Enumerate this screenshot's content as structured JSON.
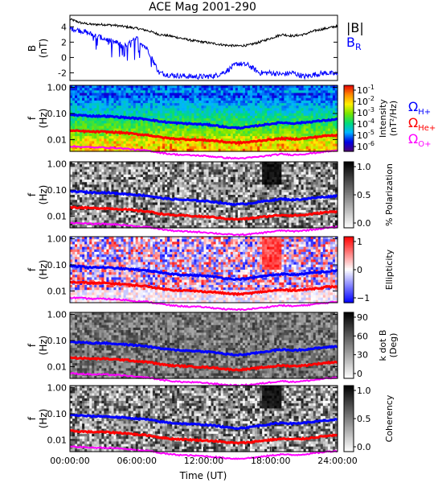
{
  "title": "ACE Mag 2001-290",
  "xaxis": {
    "label": "Time (UT)",
    "ticks": [
      "00:00:00",
      "06:00:00",
      "12:00:00",
      "18:00:00",
      "24:00:00"
    ],
    "range_hours": [
      0,
      24
    ]
  },
  "colors": {
    "B": "#000000",
    "BR": "#0000ff",
    "H": "#0000ff",
    "He": "#ff0000",
    "O": "#ff00ff"
  },
  "legend_top": {
    "B": "|B|",
    "BR_main": "B",
    "BR_sub": "R"
  },
  "gyro_legend": [
    {
      "sym": "Ω",
      "sub": "H+",
      "color": "#0000ff"
    },
    {
      "sym": "Ω",
      "sub": "He+",
      "color": "#ff0000"
    },
    {
      "sym": "Ω",
      "sub": "O+",
      "color": "#ff00ff"
    }
  ],
  "panel_b": {
    "ylabel": "B",
    "yunit": "(nT)",
    "yticks": [
      "4",
      "2",
      "0",
      "-2"
    ],
    "ylim": [
      -3,
      5.5
    ]
  },
  "spec_panels": [
    {
      "id": "intensity",
      "ylabel": "f",
      "yunit": "(Hz)",
      "yticks": [
        "1.00",
        "0.10",
        "0.01"
      ],
      "colorbar": {
        "type": "rainbow",
        "ticks_main": [
          "10",
          "10",
          "10",
          "10",
          "10",
          "10"
        ],
        "ticks_exp": [
          "-1",
          "-2",
          "-3",
          "-4",
          "-5",
          "-6"
        ],
        "label1": "Intensity",
        "label2": "(nT²/Hz)"
      }
    },
    {
      "id": "polarization",
      "ylabel": "f",
      "yunit": "(Hz)",
      "yticks": [
        "1.00",
        "0.10",
        "0.01"
      ],
      "colorbar": {
        "type": "gray",
        "ticks": [
          "1.0",
          "0.5",
          "0.0"
        ],
        "label1": "% Polarization"
      }
    },
    {
      "id": "ellipticity",
      "ylabel": "f",
      "yunit": "(Hz)",
      "yticks": [
        "1.00",
        "0.10",
        "0.01"
      ],
      "colorbar": {
        "type": "bwr",
        "ticks": [
          "1",
          "0",
          "−1"
        ],
        "label1": "Ellipticity"
      }
    },
    {
      "id": "kdotb",
      "ylabel": "f",
      "yunit": "(Hz)",
      "yticks": [
        "1.00",
        "0.10",
        "0.01"
      ],
      "colorbar": {
        "type": "gray",
        "ticks": [
          "90",
          "60",
          "30",
          "0"
        ],
        "label1": "k dot B",
        "label2": "(Deg)"
      }
    },
    {
      "id": "coherency",
      "ylabel": "f",
      "yunit": "(Hz)",
      "yticks": [
        "1.00",
        "0.10",
        "0.01"
      ],
      "colorbar": {
        "type": "gray",
        "ticks": [
          "1.0",
          "0.5",
          "0.0"
        ],
        "label1": "Coherency"
      }
    }
  ],
  "chart_data": {
    "type": "line",
    "title": "ACE Mag 2001-290",
    "xlabel": "Time (UT)",
    "x_hours": [
      0,
      1,
      2,
      3,
      4,
      5,
      6,
      7,
      8,
      9,
      10,
      11,
      12,
      13,
      14,
      15,
      16,
      17,
      18,
      19,
      20,
      21,
      22,
      23,
      24
    ],
    "series": [
      {
        "name": "|B|",
        "values": [
          5.0,
          4.5,
          4.3,
          4.3,
          4.2,
          4.0,
          3.8,
          3.5,
          3.0,
          2.8,
          2.5,
          2.2,
          2.0,
          1.8,
          1.6,
          1.5,
          1.6,
          2.0,
          2.5,
          3.0,
          2.8,
          3.0,
          3.5,
          3.8,
          4.1
        ]
      },
      {
        "name": "B_R",
        "values": [
          3.8,
          3.5,
          3.0,
          2.5,
          2.0,
          1.5,
          2.5,
          1.0,
          -2.0,
          -2.3,
          -2.4,
          -2.5,
          -2.5,
          -2.4,
          -1.8,
          -0.8,
          -1.0,
          -2.0,
          -2.0,
          -2.2,
          -2.0,
          -2.5,
          -2.2,
          -2.0,
          -2.2
        ]
      },
      {
        "name": "Ω_H+",
        "values": [
          0.09,
          0.085,
          0.08,
          0.08,
          0.075,
          0.07,
          0.065,
          0.06,
          0.05,
          0.045,
          0.042,
          0.04,
          0.038,
          0.035,
          0.03,
          0.028,
          0.03,
          0.035,
          0.04,
          0.045,
          0.042,
          0.045,
          0.05,
          0.055,
          0.06
        ]
      },
      {
        "name": "Ω_He+",
        "values": [
          0.022,
          0.021,
          0.02,
          0.02,
          0.019,
          0.018,
          0.016,
          0.015,
          0.0125,
          0.011,
          0.0105,
          0.01,
          0.0095,
          0.009,
          0.008,
          0.0075,
          0.008,
          0.009,
          0.01,
          0.011,
          0.0105,
          0.011,
          0.0125,
          0.014,
          0.015
        ]
      },
      {
        "name": "Ω_O+",
        "values": [
          0.0055,
          0.0053,
          0.005,
          0.005,
          0.0048,
          0.0045,
          0.004,
          0.0038,
          0.0032,
          0.0028,
          0.0026,
          0.0025,
          0.0024,
          0.0022,
          0.002,
          0.0019,
          0.002,
          0.0022,
          0.0025,
          0.0028,
          0.0026,
          0.0028,
          0.0031,
          0.0035,
          0.0038
        ]
      }
    ]
  }
}
